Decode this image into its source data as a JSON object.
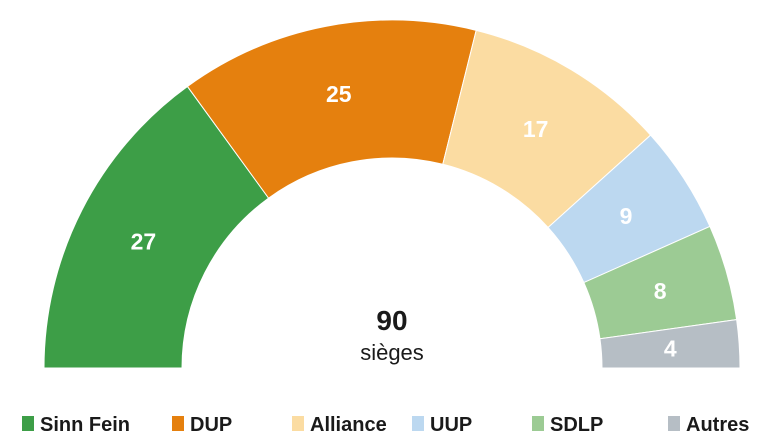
{
  "chart_data": {
    "type": "pie",
    "subtype": "half-donut",
    "total": {
      "value": "90",
      "unit": "sièges"
    },
    "categories": [
      "Sinn Fein",
      "DUP",
      "Alliance",
      "UUP",
      "SDLP",
      "Autres"
    ],
    "values": [
      27,
      25,
      17,
      9,
      8,
      4
    ],
    "colors": [
      "#3d9e47",
      "#e5800e",
      "#fbdca2",
      "#bcd8f0",
      "#9ccb94",
      "#b6bec5"
    ],
    "legend_position": "bottom"
  }
}
